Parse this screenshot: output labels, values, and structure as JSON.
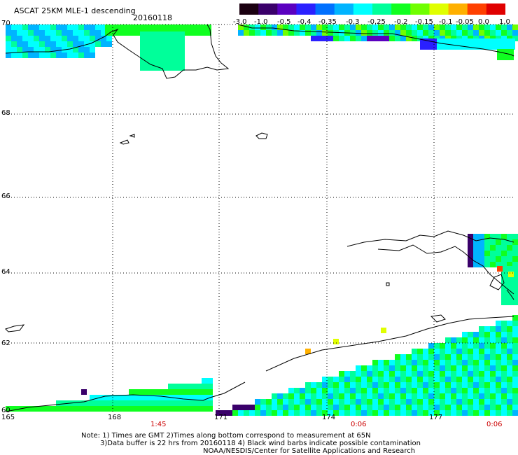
{
  "title": {
    "product": "ASCAT 25KM MLE-1 descending",
    "date": "20160118"
  },
  "colorbar": {
    "labels": [
      "-3.0",
      "-1.0",
      "-0.5",
      "-0.4",
      "-0.35",
      "-0.3",
      "-0.25",
      "-0.2",
      "-0.15",
      "-0.1",
      "-0.05",
      "0.0",
      "1.0"
    ],
    "colors": [
      "#1a0010",
      "#3a006a",
      "#5a00c0",
      "#2a20ff",
      "#0070ff",
      "#00b4ff",
      "#00ffff",
      "#00ff9a",
      "#10ff20",
      "#70ff00",
      "#e0ff00",
      "#ffb000",
      "#ff4000",
      "#e00000"
    ]
  },
  "map": {
    "lat_labels": [
      "70",
      "68",
      "66",
      "64",
      "62",
      "60"
    ],
    "lon_labels": [
      "165",
      "168",
      "171",
      "174",
      "177"
    ],
    "time_labels": [
      "1:45",
      "0:06",
      "0:06"
    ],
    "land_color": "#ffffff",
    "coast_color": "#000000"
  },
  "notes": {
    "line1": "Note:  1) Times are GMT  2)Times along bottom correspond to measurement at 65N",
    "line2": "3)Data buffer is 22 hrs from 20160118  4) Black wind barbs indicate possible contamination",
    "line3": "NOAA/NESDIS/Center for Satellite Applications and Research"
  }
}
